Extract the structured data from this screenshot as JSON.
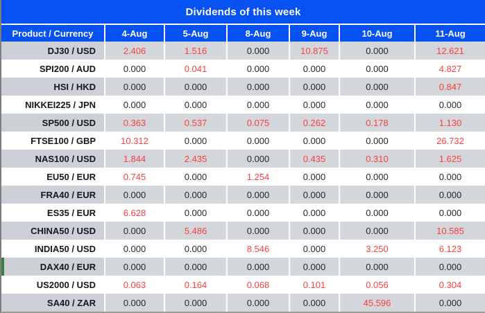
{
  "colors": {
    "header_blue": "#0551f2",
    "row_gray": "#d3d6da",
    "product_col_gray": "#cdd1d7",
    "value_red": "#fb4040",
    "value_black": "#26262e",
    "title_text": "#ffffff",
    "left_accent_green": "#3a7d44",
    "outer_border_gray": "#7d7d7d"
  },
  "chart_data": {
    "type": "table",
    "title": "Dividends of this week",
    "columns": [
      "Product / Currency",
      "4-Aug",
      "5-Aug",
      "8-Aug",
      "9-Aug",
      "10-Aug",
      "11-Aug"
    ],
    "rows": [
      {
        "product": "DJ30 / USD",
        "values": [
          "2.406",
          "1.516",
          "0.000",
          "10.875",
          "0.000",
          "12.621"
        ]
      },
      {
        "product": "SPI200 / AUD",
        "values": [
          "0.000",
          "0.041",
          "0.000",
          "0.000",
          "0.000",
          "4.827"
        ]
      },
      {
        "product": "HSI / HKD",
        "values": [
          "0.000",
          "0.000",
          "0.000",
          "0.000",
          "0.000",
          "0.847"
        ]
      },
      {
        "product": "NIKKEI225 / JPN",
        "values": [
          "0.000",
          "0.000",
          "0.000",
          "0.000",
          "0.000",
          "0.000"
        ]
      },
      {
        "product": "SP500 / USD",
        "values": [
          "0.363",
          "0.537",
          "0.075",
          "0.262",
          "0.178",
          "1.130"
        ]
      },
      {
        "product": "FTSE100 / GBP",
        "values": [
          "10.312",
          "0.000",
          "0.000",
          "0.000",
          "0.000",
          "26.732"
        ]
      },
      {
        "product": "NAS100 / USD",
        "values": [
          "1.844",
          "2.435",
          "0.000",
          "0.435",
          "0.310",
          "1.625"
        ]
      },
      {
        "product": "EU50 / EUR",
        "values": [
          "0.745",
          "0.000",
          "1.254",
          "0.000",
          "0.000",
          "0.000"
        ]
      },
      {
        "product": "FRA40 / EUR",
        "values": [
          "0.000",
          "0.000",
          "0.000",
          "0.000",
          "0.000",
          "0.000"
        ]
      },
      {
        "product": "ES35 / EUR",
        "values": [
          "6.628",
          "0.000",
          "0.000",
          "0.000",
          "0.000",
          "0.000"
        ]
      },
      {
        "product": "CHINA50 / USD",
        "values": [
          "0.000",
          "5.486",
          "0.000",
          "0.000",
          "0.000",
          "10.585"
        ]
      },
      {
        "product": "INDIA50 / USD",
        "values": [
          "0.000",
          "0.000",
          "8.546",
          "0.000",
          "3.250",
          "6.123"
        ]
      },
      {
        "product": "DAX40 / EUR",
        "values": [
          "0.000",
          "0.000",
          "0.000",
          "0.000",
          "0.000",
          "0.000"
        ]
      },
      {
        "product": "US2000 / USD",
        "values": [
          "0.063",
          "0.164",
          "0.068",
          "0.101",
          "0.056",
          "0.304"
        ]
      },
      {
        "product": "SA40 / ZAR",
        "values": [
          "0.000",
          "0.000",
          "0.000",
          "0.000",
          "45.596",
          "0.000"
        ]
      }
    ],
    "value_color_rule": "non-zero values rendered red, zero values rendered black",
    "legend_position": "none",
    "grid": "white cell separators, alternating gray/white rows"
  }
}
